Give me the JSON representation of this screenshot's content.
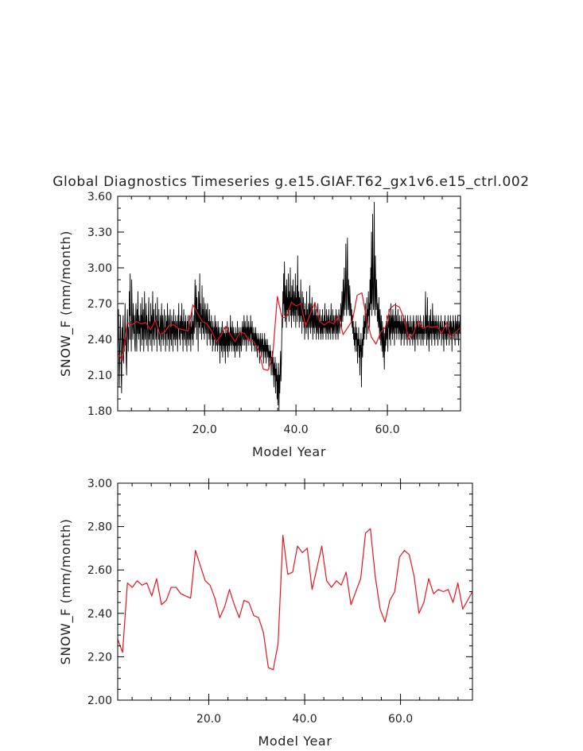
{
  "figure": {
    "title": "Global Diagnostics Timeseries g.e15.GIAF.T62_gx1v6.e15_ctrl.002"
  },
  "colors": {
    "monthly_line": "#000000",
    "annual_line": "#e8141e",
    "axis": "#000000",
    "text": "#222222"
  },
  "chart_data": [
    {
      "type": "line",
      "name": "monthly-timeseries",
      "xlabel": "Model Year",
      "ylabel": "SNOW_F (mm/month)",
      "xlim": [
        1,
        76
      ],
      "ylim": [
        1.8,
        3.6
      ],
      "xticks": [
        20,
        40,
        60
      ],
      "xtick_labels": [
        "20.0",
        "40.0",
        "60.0"
      ],
      "yticks": [
        1.8,
        2.1,
        2.4,
        2.7,
        3.0,
        3.3,
        3.6
      ],
      "ytick_labels": [
        "1.80",
        "2.10",
        "2.40",
        "2.70",
        "3.00",
        "3.30",
        "3.60"
      ],
      "series": [
        {
          "name": "monthly",
          "color": "#000000",
          "values": [
            2.3,
            2.5,
            2.65,
            2.2,
            2.0,
            2.3,
            2.45,
            2.6,
            2.35,
            2.1,
            1.95,
            2.5,
            2.28,
            2.48,
            2.6,
            2.2,
            2.4,
            2.3,
            2.5,
            2.7,
            2.35,
            2.45,
            2.2,
            2.1,
            2.5,
            2.65,
            2.45,
            2.3,
            2.5,
            2.4,
            2.8,
            2.6,
            2.95,
            2.4,
            2.55,
            2.3,
            2.9,
            2.65,
            2.5,
            2.4,
            2.7,
            2.55,
            2.45,
            2.6,
            2.35,
            2.3,
            2.55,
            2.7,
            2.5,
            2.3,
            2.65,
            2.45,
            2.8,
            2.5,
            2.4,
            2.6,
            2.45,
            2.55,
            2.3,
            2.7,
            2.5,
            2.6,
            2.35,
            2.75,
            2.4,
            2.55,
            2.65,
            2.3,
            2.45,
            2.8,
            2.5,
            2.4,
            2.55,
            2.7,
            2.35,
            2.6,
            2.5,
            2.45,
            2.3,
            2.6,
            2.75,
            2.4,
            2.55,
            2.5,
            2.35,
            2.7,
            2.45,
            2.6,
            2.3,
            2.55,
            2.8,
            2.4,
            2.5,
            2.65,
            2.35,
            2.55,
            2.5,
            2.7,
            2.4,
            2.45,
            2.6,
            2.3,
            2.75,
            2.5,
            2.55,
            2.4,
            2.65,
            2.35,
            2.5,
            2.45,
            2.6,
            2.3,
            2.55,
            2.7,
            2.4,
            2.5,
            2.6,
            2.35,
            2.45,
            2.55,
            2.65,
            2.4,
            2.5,
            2.3,
            2.6,
            2.45,
            2.55,
            2.35,
            2.7,
            2.5,
            2.4,
            2.6,
            2.45,
            2.3,
            2.55,
            2.65,
            2.4,
            2.5,
            2.35,
            2.6,
            2.45,
            2.55,
            2.3,
            2.5,
            2.65,
            2.4,
            2.55,
            2.45,
            2.35,
            2.6,
            2.5,
            2.4,
            2.55,
            2.45,
            2.3,
            2.6,
            2.5,
            2.7,
            2.4,
            2.45,
            2.55,
            2.35,
            2.6,
            2.5,
            2.45,
            2.7,
            2.4,
            2.55,
            2.3,
            2.5,
            2.65,
            2.45,
            2.4,
            2.55,
            2.35,
            2.6,
            2.5,
            2.45,
            2.3,
            2.55,
            2.4,
            2.6,
            2.5,
            2.35,
            2.45,
            2.6,
            2.4,
            2.55,
            2.3,
            2.5,
            2.45,
            2.65,
            2.4,
            2.55,
            2.35,
            2.5,
            2.6,
            2.45,
            2.7,
            2.9,
            2.5,
            2.6,
            2.85,
            2.4,
            2.75,
            2.55,
            2.65,
            2.3,
            2.8,
            2.6,
            2.5,
            2.95,
            2.45,
            2.7,
            2.55,
            2.6,
            2.4,
            2.85,
            2.5,
            2.65,
            2.45,
            2.75,
            2.55,
            2.4,
            2.6,
            2.7,
            2.5,
            2.45,
            2.65,
            2.55,
            2.35,
            2.7,
            2.6,
            2.45,
            2.55,
            2.4,
            2.65,
            2.5,
            2.35,
            2.55,
            2.45,
            2.6,
            2.4,
            2.5,
            2.3,
            2.55,
            2.45,
            2.35,
            2.5,
            2.4,
            2.6,
            2.3,
            2.45,
            2.55,
            2.35,
            2.5,
            2.4,
            2.3,
            2.55,
            2.45,
            2.35,
            2.5,
            2.4,
            2.2,
            2.45,
            2.35,
            2.5,
            2.3,
            2.4,
            2.55,
            2.25,
            2.45,
            2.35,
            2.5,
            2.3,
            2.45,
            2.4,
            2.2,
            2.5,
            2.35,
            2.45,
            2.3,
            2.55,
            2.4,
            2.25,
            2.5,
            2.35,
            2.45,
            2.3,
            2.4,
            2.6,
            2.35,
            2.5,
            2.45,
            2.3,
            2.55,
            2.4,
            2.35,
            2.5,
            2.3,
            2.45,
            2.4,
            2.25,
            2.5,
            2.35,
            2.45,
            2.3,
            2.4,
            2.55,
            2.3,
            2.45,
            2.35,
            2.5,
            2.4,
            2.25,
            2.45,
            2.35,
            2.5,
            2.3,
            2.4,
            2.45,
            2.55,
            2.35,
            2.5,
            2.4,
            2.6,
            2.45,
            2.35,
            2.55,
            2.4,
            2.5,
            2.3,
            2.45,
            2.6,
            2.4,
            2.5,
            2.35,
            2.55,
            2.45,
            2.4,
            2.5,
            2.35,
            2.6,
            2.45,
            2.5,
            2.3,
            2.55,
            2.4,
            2.45,
            2.35,
            2.5,
            2.4,
            2.3,
            2.45,
            2.35,
            2.5,
            2.3,
            2.4,
            2.45,
            2.25,
            2.4,
            2.35,
            2.45,
            2.3,
            2.4,
            2.2,
            2.35,
            2.45,
            2.3,
            2.4,
            2.25,
            2.35,
            2.45,
            2.3,
            2.4,
            2.2,
            2.35,
            2.3,
            2.45,
            2.25,
            2.35,
            2.4,
            2.2,
            2.35,
            2.3,
            2.4,
            2.25,
            2.35,
            2.3,
            2.15,
            2.3,
            2.25,
            2.35,
            2.2,
            2.3,
            2.1,
            2.25,
            2.2,
            2.3,
            2.1,
            2.25,
            2.15,
            2.0,
            2.2,
            2.1,
            2.25,
            1.95,
            2.15,
            2.05,
            2.2,
            1.9,
            2.1,
            1.85,
            2.05,
            2.2,
            1.8,
            2.1,
            1.95,
            2.15,
            2.3,
            2.05,
            2.2,
            2.4,
            2.6,
            2.5,
            2.8,
            2.7,
            2.95,
            2.6,
            3.05,
            2.75,
            2.55,
            2.85,
            2.7,
            2.5,
            2.9,
            2.65,
            2.75,
            2.6,
            2.95,
            2.7,
            2.55,
            2.8,
            2.65,
            3.0,
            2.6,
            2.75,
            2.5,
            2.85,
            2.7,
            2.6,
            2.9,
            2.65,
            2.55,
            2.8,
            2.7,
            2.6,
            2.95,
            2.5,
            2.75,
            2.65,
            2.85,
            2.55,
            3.1,
            2.7,
            2.6,
            2.8,
            2.5,
            2.75,
            2.65,
            2.55,
            2.9,
            2.6,
            2.7,
            2.45,
            2.8,
            2.6,
            2.55,
            2.75,
            2.5,
            2.65,
            2.4,
            2.7,
            2.55,
            2.6,
            2.45,
            2.8,
            2.5,
            2.65,
            2.55,
            2.4,
            2.7,
            2.6,
            2.5,
            2.85,
            2.55,
            2.45,
            2.7,
            2.6,
            2.5,
            2.75,
            2.55,
            2.4,
            2.65,
            2.5,
            2.6,
            2.45,
            2.7,
            2.55,
            2.5,
            2.65,
            2.4,
            2.6,
            2.5,
            2.45,
            2.7,
            2.55,
            2.4,
            2.6,
            2.5,
            2.65,
            2.45,
            2.55,
            2.4,
            2.6,
            2.5,
            2.45,
            2.65,
            2.4,
            2.55,
            2.5,
            2.6,
            2.45,
            2.7,
            2.5,
            2.55,
            2.4,
            2.65,
            2.5,
            2.45,
            2.6,
            2.55,
            2.4,
            2.65,
            2.5,
            2.45,
            2.55,
            2.6,
            2.4,
            2.7,
            2.5,
            2.55,
            2.45,
            2.65,
            2.4,
            2.6,
            2.5,
            2.45,
            2.55,
            2.6,
            2.5,
            2.4,
            2.65,
            2.55,
            2.45,
            2.6,
            2.5,
            2.4,
            2.55,
            2.65,
            2.5,
            2.45,
            2.6,
            2.55,
            2.7,
            2.6,
            2.5,
            2.8,
            2.65,
            2.55,
            2.9,
            2.7,
            2.6,
            3.0,
            2.75,
            2.65,
            2.85,
            3.2,
            2.7,
            2.6,
            2.95,
            3.25,
            2.8,
            2.65,
            2.9,
            2.7,
            2.6,
            2.85,
            2.75,
            2.6,
            2.7,
            2.55,
            2.65,
            2.5,
            2.6,
            2.45,
            2.55,
            2.4,
            2.5,
            2.35,
            2.45,
            2.3,
            2.55,
            2.4,
            2.5,
            2.3,
            2.45,
            2.2,
            2.4,
            2.35,
            2.5,
            2.25,
            2.4,
            2.1,
            2.35,
            2.3,
            2.45,
            2.0,
            2.3,
            2.4,
            2.25,
            2.5,
            2.35,
            2.6,
            2.4,
            2.55,
            2.45,
            2.7,
            2.5,
            2.6,
            2.4,
            2.75,
            2.55,
            2.65,
            2.45,
            2.8,
            2.6,
            2.7,
            2.5,
            2.9,
            2.65,
            3.0,
            2.7,
            3.3,
            2.6,
            2.85,
            3.45,
            2.75,
            2.65,
            2.95,
            3.55,
            2.7,
            2.6,
            3.1,
            2.8,
            2.65,
            2.9,
            2.75,
            2.55,
            2.7,
            2.6,
            2.5,
            2.75,
            2.55,
            2.4,
            2.65,
            2.5,
            2.35,
            2.6,
            2.45,
            2.3,
            2.55,
            2.4,
            2.25,
            2.5,
            2.35,
            2.15,
            2.45,
            2.3,
            2.5,
            2.35,
            2.55,
            2.4,
            2.6,
            2.45,
            2.3,
            2.55,
            2.5,
            2.65,
            2.4,
            2.6,
            2.5,
            2.35,
            2.7,
            2.45,
            2.55,
            2.6,
            2.4,
            2.65,
            2.5,
            2.45,
            2.6,
            2.35,
            2.55,
            2.5,
            2.7,
            2.45,
            2.6,
            2.4,
            2.55,
            2.5,
            2.65,
            2.45,
            2.55,
            2.4,
            2.6,
            2.5,
            2.45,
            2.55,
            2.35,
            2.6,
            2.5,
            2.4,
            2.55,
            2.45,
            2.6,
            2.5,
            2.35,
            2.55,
            2.45,
            2.6,
            2.4,
            2.5,
            2.55,
            2.45,
            2.35,
            2.6,
            2.5,
            2.4,
            2.55,
            2.45,
            2.5,
            2.35,
            2.6,
            2.45,
            2.5,
            2.4,
            2.55,
            2.45,
            2.35,
            2.5,
            2.6,
            2.4,
            2.55,
            2.45,
            2.3,
            2.5,
            2.45,
            2.6,
            2.4,
            2.55,
            2.5,
            2.35,
            2.6,
            2.45,
            2.5,
            2.4,
            2.55,
            2.45,
            2.6,
            2.35,
            2.5,
            2.45,
            2.55,
            2.4,
            2.5,
            2.35,
            2.6,
            2.45,
            2.5,
            2.4,
            2.55,
            2.8,
            2.45,
            2.6,
            2.35,
            2.5,
            2.75,
            2.4,
            2.55,
            2.45,
            2.3,
            2.6,
            2.5,
            2.4,
            2.65,
            2.45,
            2.55,
            2.35,
            2.5,
            2.7,
            2.45,
            2.55,
            2.4,
            2.6,
            2.5,
            2.35,
            2.55,
            2.45,
            2.6,
            2.4,
            2.5,
            2.55,
            2.45,
            2.35,
            2.6,
            2.5,
            2.45,
            2.4,
            2.55,
            2.5,
            2.45,
            2.6,
            2.35,
            2.5,
            2.45,
            2.55,
            2.4,
            2.5,
            2.3,
            2.55,
            2.45,
            2.6,
            2.4,
            2.5,
            2.45,
            2.35,
            2.55,
            2.5,
            2.4,
            2.6,
            2.45,
            2.5,
            2.35,
            2.55,
            2.45,
            2.6,
            2.4,
            2.5,
            2.55,
            2.3,
            2.5,
            2.45,
            2.6,
            2.4,
            2.55,
            2.5,
            2.45,
            2.35,
            2.6,
            2.5,
            2.45,
            2.55,
            2.4,
            2.5,
            2.6,
            2.45,
            2.35,
            2.55,
            2.5,
            2.45,
            2.6,
            2.4
          ]
        },
        {
          "name": "annual mean",
          "color": "#e8141e",
          "values": [
            2.28,
            2.22,
            2.54,
            2.52,
            2.55,
            2.53,
            2.54,
            2.48,
            2.56,
            2.44,
            2.46,
            2.52,
            2.52,
            2.49,
            2.48,
            2.47,
            2.69,
            2.62,
            2.55,
            2.53,
            2.47,
            2.38,
            2.43,
            2.51,
            2.44,
            2.38,
            2.46,
            2.45,
            2.39,
            2.38,
            2.31,
            2.15,
            2.14,
            2.26,
            2.76,
            2.58,
            2.59,
            2.71,
            2.68,
            2.7,
            2.51,
            2.61,
            2.71,
            2.55,
            2.52,
            2.55,
            2.53,
            2.59,
            2.44,
            2.5,
            2.56,
            2.77,
            2.79,
            2.57,
            2.42,
            2.36,
            2.46,
            2.5,
            2.66,
            2.69,
            2.67,
            2.57,
            2.4,
            2.45,
            2.56,
            2.49,
            2.51,
            2.5,
            2.51,
            2.45,
            2.54,
            2.42,
            2.46,
            2.5
          ]
        }
      ]
    },
    {
      "type": "line",
      "name": "annual-mean",
      "xlabel": "Model Year",
      "ylabel": "SNOW_F (mm/month)",
      "xlim": [
        1,
        75
      ],
      "ylim": [
        2.0,
        3.0
      ],
      "xticks": [
        20,
        40,
        60
      ],
      "xtick_labels": [
        "20.0",
        "40.0",
        "60.0"
      ],
      "yticks": [
        2.0,
        2.2,
        2.4,
        2.6,
        2.8,
        3.0
      ],
      "ytick_labels": [
        "2.00",
        "2.20",
        "2.40",
        "2.60",
        "2.80",
        "3.00"
      ],
      "series": [
        {
          "name": "annual mean",
          "color": "#e8141e",
          "values": [
            2.28,
            2.22,
            2.54,
            2.52,
            2.55,
            2.53,
            2.54,
            2.48,
            2.56,
            2.44,
            2.46,
            2.52,
            2.52,
            2.49,
            2.48,
            2.47,
            2.69,
            2.62,
            2.55,
            2.53,
            2.47,
            2.38,
            2.43,
            2.51,
            2.44,
            2.38,
            2.46,
            2.45,
            2.39,
            2.38,
            2.31,
            2.15,
            2.14,
            2.26,
            2.76,
            2.58,
            2.59,
            2.71,
            2.68,
            2.7,
            2.51,
            2.61,
            2.71,
            2.55,
            2.52,
            2.55,
            2.53,
            2.59,
            2.44,
            2.5,
            2.56,
            2.77,
            2.79,
            2.57,
            2.42,
            2.36,
            2.46,
            2.5,
            2.66,
            2.69,
            2.67,
            2.57,
            2.4,
            2.45,
            2.56,
            2.49,
            2.51,
            2.5,
            2.51,
            2.45,
            2.54,
            2.42,
            2.46,
            2.5
          ]
        }
      ]
    }
  ]
}
